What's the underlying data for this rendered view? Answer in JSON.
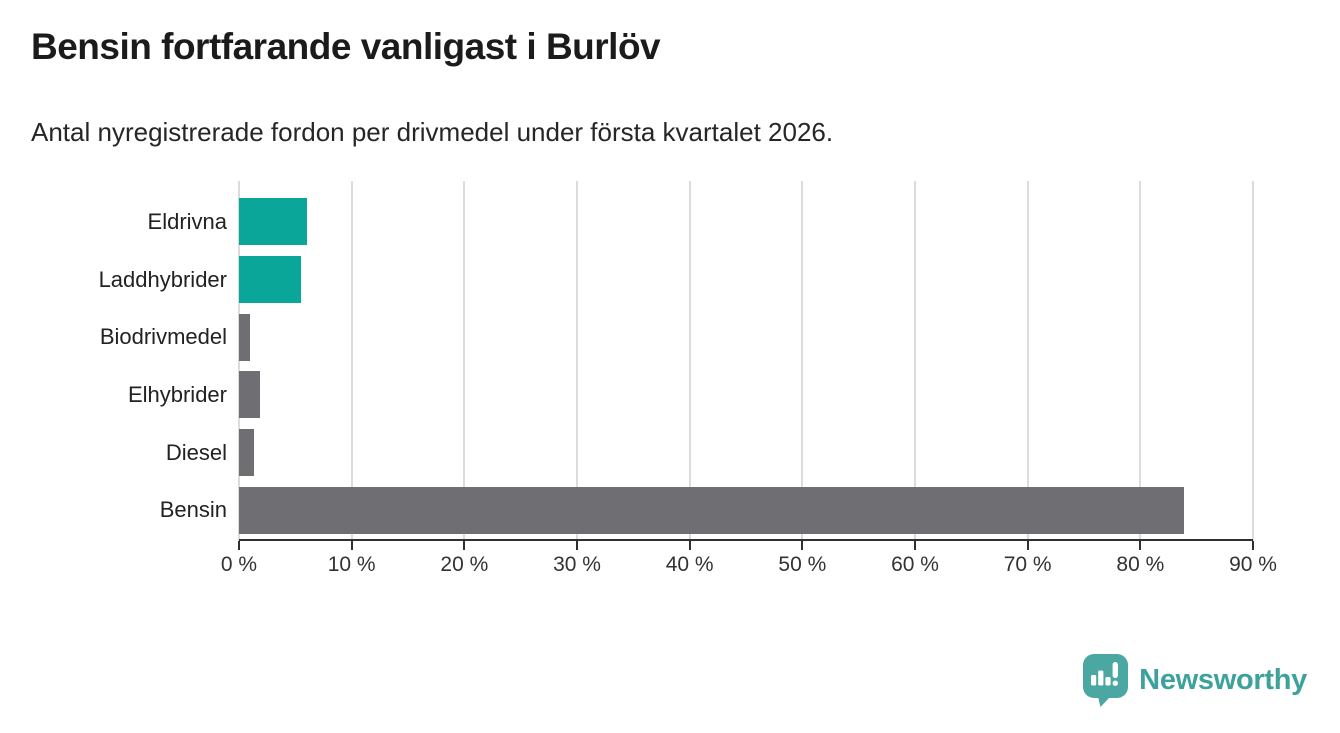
{
  "chart_data": {
    "type": "bar",
    "orientation": "horizontal",
    "title": "Bensin fortfarande vanligast i Burlöv",
    "subtitle": "Antal nyregistrerade fordon per drivmedel under första kvartalet 2026.",
    "categories": [
      "Eldrivna",
      "Laddhybrider",
      "Biodrivmedel",
      "Elhybrider",
      "Diesel",
      "Bensin"
    ],
    "values": [
      6.0,
      5.5,
      1.0,
      1.9,
      1.3,
      83.9
    ],
    "value_unit": "percent",
    "bar_colors": [
      "#0aa69a",
      "#0aa69a",
      "#6e6e73",
      "#6e6e73",
      "#6e6e73",
      "#6e6e73"
    ],
    "xlim": [
      0,
      90
    ],
    "x_ticks": [
      {
        "value": 0,
        "label": "0 %"
      },
      {
        "value": 10,
        "label": "10 %"
      },
      {
        "value": 20,
        "label": "20 %"
      },
      {
        "value": 30,
        "label": "30 %"
      },
      {
        "value": 40,
        "label": "40 %"
      },
      {
        "value": 50,
        "label": "50 %"
      },
      {
        "value": 60,
        "label": "60 %"
      },
      {
        "value": 70,
        "label": "70 %"
      },
      {
        "value": 80,
        "label": "80 %"
      },
      {
        "value": 90,
        "label": "90 %"
      }
    ],
    "xlabel": "",
    "ylabel": "",
    "grid": "vertical",
    "legend": "none"
  },
  "branding": {
    "wordmark": "Newsworthy",
    "logo_icon": "newsworthy-pin-bar-chart-icon",
    "wordmark_color": "#3da19c",
    "pin_color": "#4aa7a1"
  },
  "colors": {
    "accent_teal": "#0aa69a",
    "neutral_gray": "#6e6e73",
    "gridline": "#dcdcdc",
    "axis": "#2f2f2f",
    "title_text": "#1b1b1b",
    "body_text": "#262626"
  }
}
